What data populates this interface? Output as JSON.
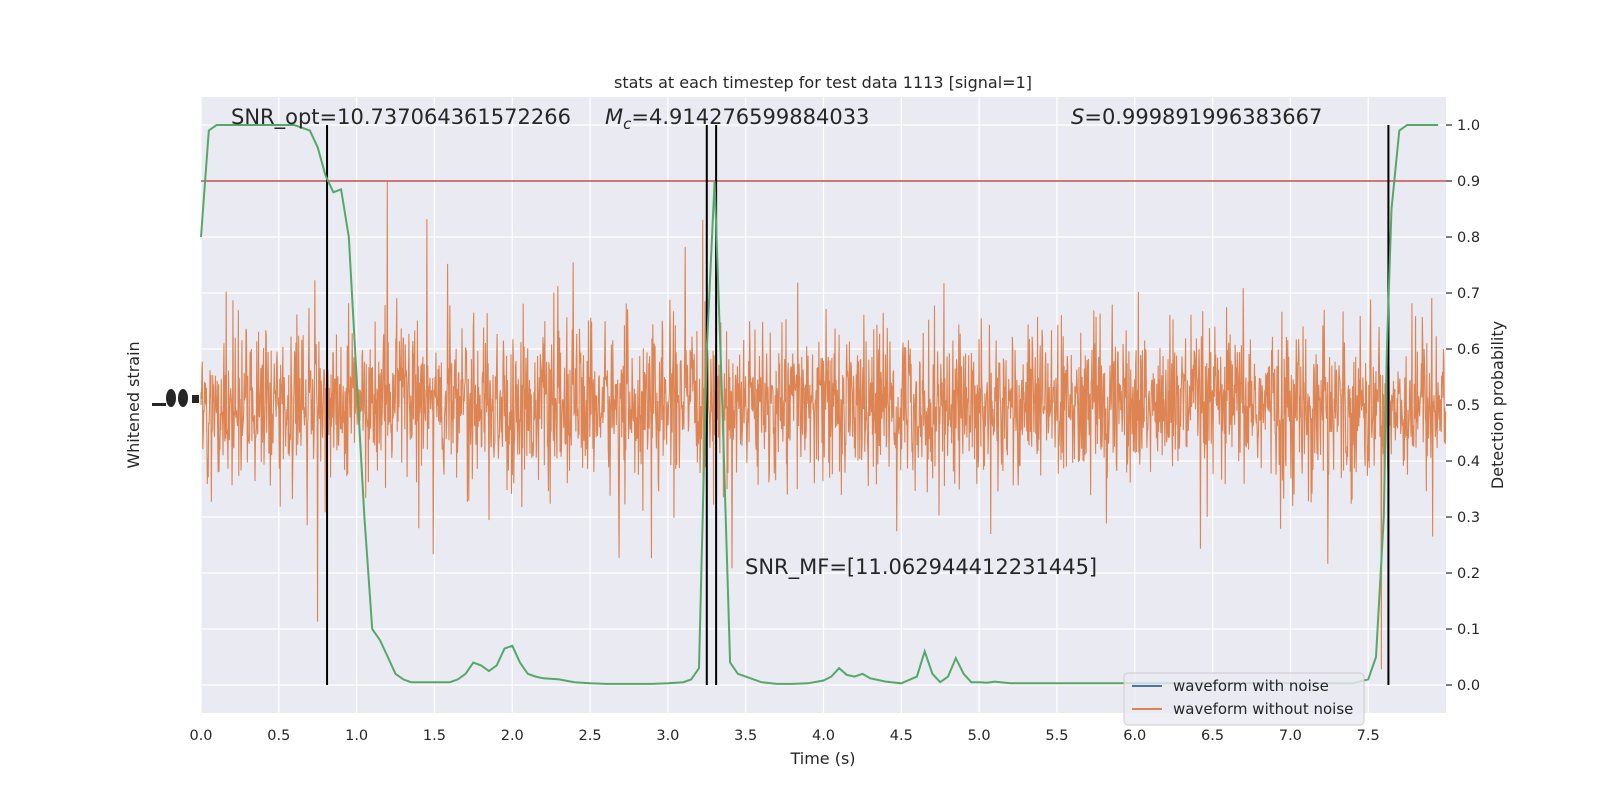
{
  "chart_data": {
    "type": "line",
    "title": "stats at each timestep for test data 1113 [signal=1]",
    "xlabel": "Time (s)",
    "ylabel_left": "Whitened strain",
    "ylabel_right": "Detection probability",
    "xlim": [
      0.0,
      8.0
    ],
    "ylim_right": [
      -0.05,
      1.05
    ],
    "x_ticks": [
      "0.0",
      "0.5",
      "1.0",
      "1.5",
      "2.0",
      "2.5",
      "3.0",
      "3.5",
      "4.0",
      "4.5",
      "5.0",
      "5.5",
      "6.0",
      "6.5",
      "7.0",
      "7.5"
    ],
    "x_tick_values": [
      0.0,
      0.5,
      1.0,
      1.5,
      2.0,
      2.5,
      3.0,
      3.5,
      4.0,
      4.5,
      5.0,
      5.5,
      6.0,
      6.5,
      7.0,
      7.5
    ],
    "y_right_ticks": [
      "0.0",
      "0.1",
      "0.2",
      "0.3",
      "0.4",
      "0.5",
      "0.6",
      "0.7",
      "0.8",
      "0.9",
      "1.0"
    ],
    "y_right_tick_values": [
      0.0,
      0.1,
      0.2,
      0.3,
      0.4,
      0.5,
      0.6,
      0.7,
      0.8,
      0.9,
      1.0
    ],
    "grid": true,
    "legend_position": "bottom-right",
    "annotations": {
      "snr_opt": "SNR_opt=10.737064361572266",
      "mc_symbol": "M",
      "mc_sub": "c",
      "mc_value": "=4.914276599884033",
      "s_symbol": "S",
      "s_value": "=0.999891996383667",
      "snr_mf": "SNR_MF=[11.062944412231445]"
    },
    "threshold": 0.9,
    "vertical_markers": [
      0.81,
      3.25,
      3.31,
      7.63
    ],
    "series": [
      {
        "name": "waveform with noise",
        "color": "#4c72b0"
      },
      {
        "name": "waveform without noise",
        "color": "#dd8452"
      }
    ],
    "detection_probability": {
      "color": "#55a868",
      "x": [
        0.0,
        0.05,
        0.1,
        0.2,
        0.3,
        0.4,
        0.5,
        0.6,
        0.65,
        0.7,
        0.75,
        0.8,
        0.85,
        0.9,
        0.95,
        1.0,
        1.05,
        1.1,
        1.15,
        1.2,
        1.25,
        1.3,
        1.35,
        1.4,
        1.5,
        1.6,
        1.65,
        1.7,
        1.75,
        1.8,
        1.85,
        1.9,
        1.95,
        2.0,
        2.05,
        2.1,
        2.15,
        2.2,
        2.3,
        2.4,
        2.5,
        2.6,
        2.7,
        2.8,
        2.9,
        3.0,
        3.1,
        3.15,
        3.2,
        3.25,
        3.3,
        3.35,
        3.4,
        3.45,
        3.5,
        3.6,
        3.7,
        3.8,
        3.9,
        4.0,
        4.05,
        4.1,
        4.15,
        4.2,
        4.25,
        4.3,
        4.4,
        4.5,
        4.6,
        4.65,
        4.7,
        4.75,
        4.8,
        4.85,
        4.9,
        4.95,
        5.0,
        5.05,
        5.1,
        5.2,
        5.3,
        5.4,
        5.5,
        6.0,
        6.5,
        7.0,
        7.3,
        7.4,
        7.5,
        7.55,
        7.6,
        7.62,
        7.65,
        7.7,
        7.75,
        7.8,
        7.95
      ],
      "y": [
        0.8,
        0.99,
        1.0,
        1.0,
        1.0,
        1.0,
        1.0,
        1.0,
        0.995,
        0.99,
        0.96,
        0.91,
        0.88,
        0.885,
        0.8,
        0.55,
        0.3,
        0.1,
        0.08,
        0.05,
        0.02,
        0.01,
        0.005,
        0.005,
        0.005,
        0.005,
        0.01,
        0.02,
        0.04,
        0.035,
        0.025,
        0.035,
        0.065,
        0.07,
        0.04,
        0.02,
        0.015,
        0.012,
        0.01,
        0.005,
        0.003,
        0.002,
        0.002,
        0.002,
        0.002,
        0.003,
        0.005,
        0.01,
        0.03,
        0.6,
        0.9,
        0.5,
        0.04,
        0.02,
        0.015,
        0.005,
        0.002,
        0.002,
        0.003,
        0.008,
        0.015,
        0.03,
        0.018,
        0.015,
        0.02,
        0.012,
        0.006,
        0.003,
        0.015,
        0.06,
        0.02,
        0.005,
        0.015,
        0.048,
        0.02,
        0.005,
        0.005,
        0.004,
        0.006,
        0.003,
        0.003,
        0.003,
        0.003,
        0.003,
        0.003,
        0.003,
        0.003,
        0.003,
        0.01,
        0.05,
        0.3,
        0.6,
        0.85,
        0.99,
        1.0,
        1.0,
        1.0
      ]
    }
  }
}
